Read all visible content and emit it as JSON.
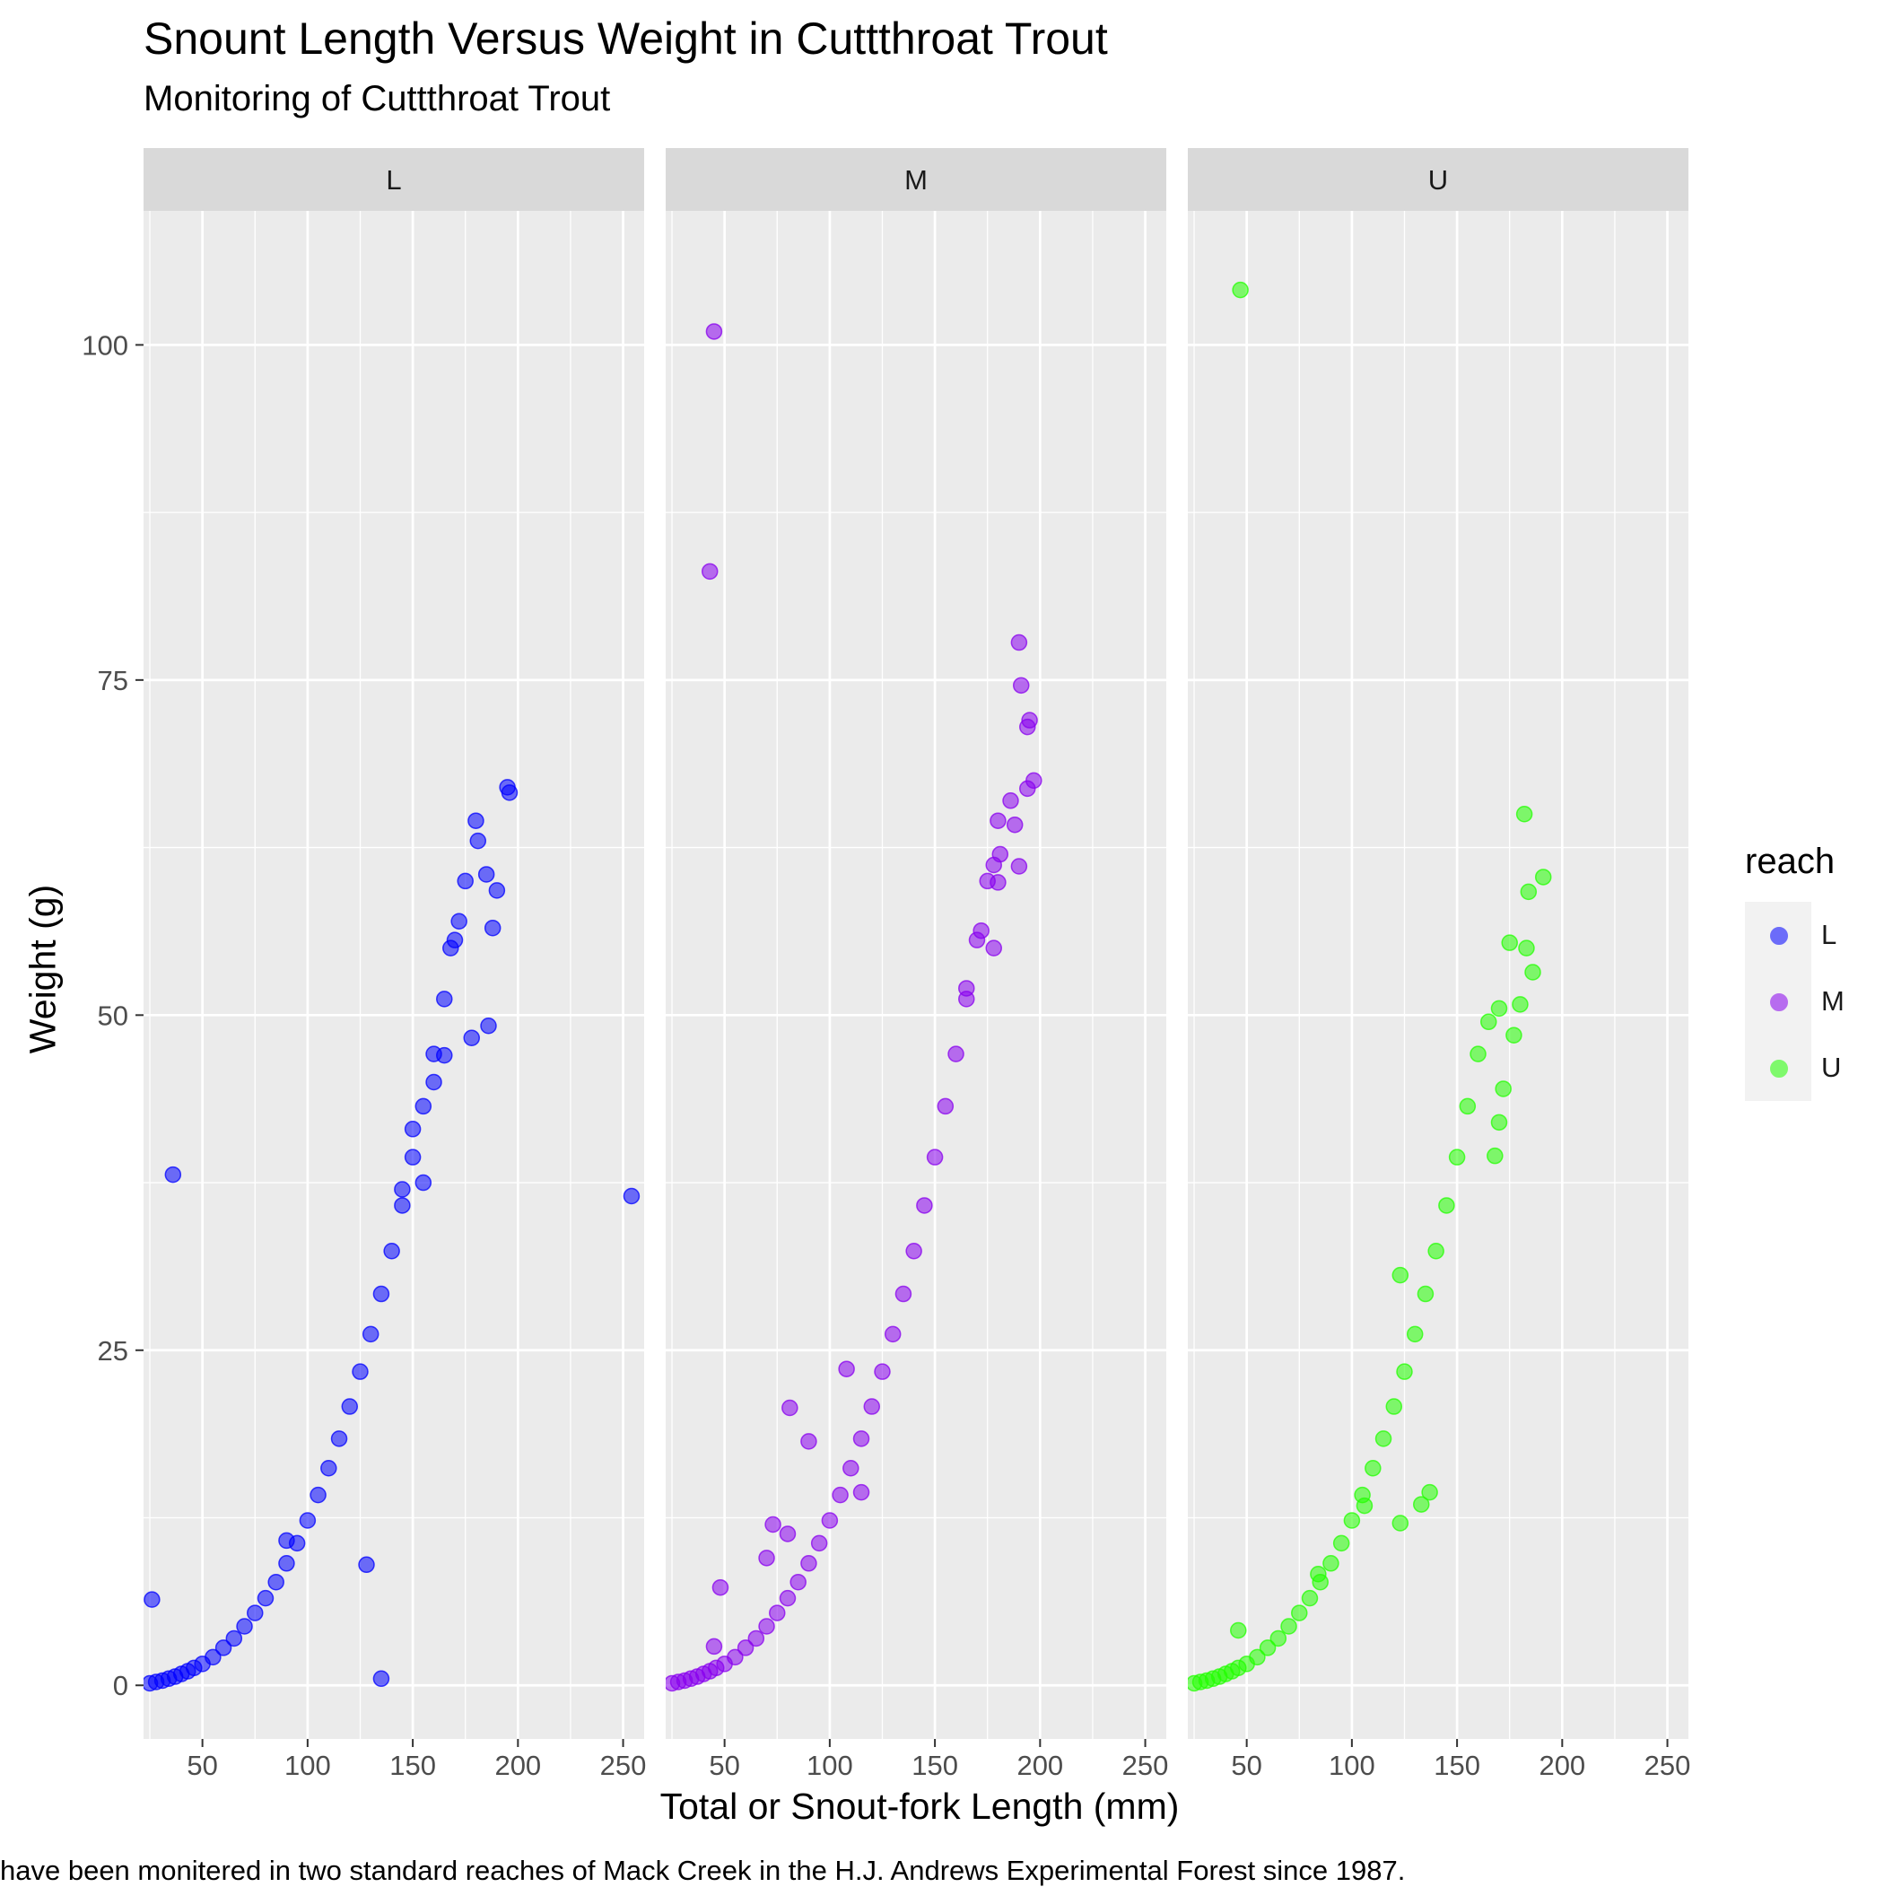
{
  "chart_data": {
    "type": "scatter",
    "title": "Snount Length Versus Weight in Cuttthroat Trout",
    "subtitle": "Monitoring of Cuttthroat Trout",
    "xlabel": "Total or Snout-fork Length (mm)",
    "ylabel": "Weight (g)",
    "caption": "have been monitered in two standard reaches of Mack Creek in the H.J. Andrews Experimental Forest since 1987.",
    "xlim": [
      22,
      260
    ],
    "ylim": [
      -4,
      110
    ],
    "x_ticks": [
      50,
      100,
      150,
      200,
      250
    ],
    "x_tick_labels": [
      "50",
      "100",
      "150",
      "200",
      "250"
    ],
    "y_ticks": [
      0,
      25,
      50,
      75,
      100
    ],
    "y_tick_labels": [
      "0",
      "25",
      "50",
      "75",
      "100"
    ],
    "grid": true,
    "legend": {
      "title": "reach",
      "position": "right"
    },
    "facets": [
      "L",
      "M",
      "U"
    ],
    "series": [
      {
        "name": "L",
        "facet": "L",
        "color": "#0000ff",
        "points": [
          [
            25,
            0.15
          ],
          [
            28,
            0.25
          ],
          [
            31,
            0.35
          ],
          [
            34,
            0.5
          ],
          [
            37,
            0.65
          ],
          [
            40,
            0.85
          ],
          [
            43,
            1.05
          ],
          [
            46,
            1.3
          ],
          [
            50,
            1.6
          ],
          [
            55,
            2.1
          ],
          [
            60,
            2.8
          ],
          [
            65,
            3.5
          ],
          [
            70,
            4.4
          ],
          [
            75,
            5.4
          ],
          [
            80,
            6.5
          ],
          [
            85,
            7.7
          ],
          [
            90,
            9.1
          ],
          [
            95,
            10.6
          ],
          [
            100,
            12.3
          ],
          [
            105,
            14.2
          ],
          [
            110,
            16.2
          ],
          [
            115,
            18.4
          ],
          [
            120,
            20.8
          ],
          [
            125,
            23.4
          ],
          [
            130,
            26.2
          ],
          [
            135,
            29.2
          ],
          [
            140,
            32.4
          ],
          [
            145,
            35.8
          ],
          [
            150,
            39.4
          ],
          [
            155,
            43.2
          ],
          [
            160,
            47.1
          ],
          [
            165,
            51.2
          ],
          [
            170,
            55.6
          ],
          [
            175,
            60.0
          ],
          [
            180,
            64.5
          ],
          [
            185,
            60.5
          ],
          [
            190,
            59.3
          ],
          [
            195,
            67.0
          ],
          [
            196,
            66.6
          ],
          [
            181,
            63.0
          ],
          [
            172,
            57.0
          ],
          [
            168,
            55.0
          ],
          [
            186,
            49.2
          ],
          [
            188,
            56.5
          ],
          [
            178,
            48.3
          ],
          [
            165,
            47.0
          ],
          [
            160,
            45.0
          ],
          [
            150,
            41.5
          ],
          [
            145,
            37.0
          ],
          [
            155,
            37.5
          ],
          [
            26,
            6.4
          ],
          [
            36,
            38.1
          ],
          [
            254,
            36.5
          ],
          [
            128,
            9.0
          ],
          [
            135,
            0.5
          ],
          [
            90,
            10.8
          ]
        ]
      },
      {
        "name": "M",
        "facet": "M",
        "color": "#8800ee",
        "points": [
          [
            25,
            0.15
          ],
          [
            28,
            0.25
          ],
          [
            31,
            0.35
          ],
          [
            34,
            0.5
          ],
          [
            37,
            0.65
          ],
          [
            40,
            0.85
          ],
          [
            43,
            1.05
          ],
          [
            46,
            1.3
          ],
          [
            50,
            1.6
          ],
          [
            55,
            2.1
          ],
          [
            60,
            2.8
          ],
          [
            65,
            3.5
          ],
          [
            70,
            4.4
          ],
          [
            75,
            5.4
          ],
          [
            80,
            6.5
          ],
          [
            85,
            7.7
          ],
          [
            90,
            9.1
          ],
          [
            95,
            10.6
          ],
          [
            100,
            12.3
          ],
          [
            105,
            14.2
          ],
          [
            110,
            16.2
          ],
          [
            115,
            18.4
          ],
          [
            120,
            20.8
          ],
          [
            125,
            23.4
          ],
          [
            130,
            26.2
          ],
          [
            135,
            29.2
          ],
          [
            140,
            32.4
          ],
          [
            145,
            35.8
          ],
          [
            150,
            39.4
          ],
          [
            155,
            43.2
          ],
          [
            160,
            47.1
          ],
          [
            165,
            51.2
          ],
          [
            170,
            55.6
          ],
          [
            175,
            60.0
          ],
          [
            180,
            64.5
          ],
          [
            190,
            77.8
          ],
          [
            191,
            74.6
          ],
          [
            195,
            72.0
          ],
          [
            194,
            71.5
          ],
          [
            197,
            67.5
          ],
          [
            194,
            66.9
          ],
          [
            186,
            66.0
          ],
          [
            188,
            64.2
          ],
          [
            181,
            62.0
          ],
          [
            190,
            61.1
          ],
          [
            178,
            61.2
          ],
          [
            180,
            59.9
          ],
          [
            172,
            56.3
          ],
          [
            178,
            55.0
          ],
          [
            165,
            52.0
          ],
          [
            45,
            101.0
          ],
          [
            43,
            83.1
          ],
          [
            81,
            20.7
          ],
          [
            90,
            18.2
          ],
          [
            108,
            23.6
          ],
          [
            73,
            12.0
          ],
          [
            80,
            11.3
          ],
          [
            70,
            9.5
          ],
          [
            48,
            7.3
          ],
          [
            45,
            2.9
          ],
          [
            115,
            14.4
          ]
        ]
      },
      {
        "name": "U",
        "facet": "U",
        "color": "#22ff00",
        "points": [
          [
            25,
            0.15
          ],
          [
            28,
            0.25
          ],
          [
            31,
            0.35
          ],
          [
            34,
            0.5
          ],
          [
            37,
            0.65
          ],
          [
            40,
            0.85
          ],
          [
            43,
            1.05
          ],
          [
            46,
            1.3
          ],
          [
            50,
            1.6
          ],
          [
            55,
            2.1
          ],
          [
            60,
            2.8
          ],
          [
            65,
            3.5
          ],
          [
            70,
            4.4
          ],
          [
            75,
            5.4
          ],
          [
            80,
            6.5
          ],
          [
            85,
            7.7
          ],
          [
            90,
            9.1
          ],
          [
            95,
            10.6
          ],
          [
            100,
            12.3
          ],
          [
            105,
            14.2
          ],
          [
            110,
            16.2
          ],
          [
            115,
            18.4
          ],
          [
            120,
            20.8
          ],
          [
            125,
            23.4
          ],
          [
            130,
            26.2
          ],
          [
            135,
            29.2
          ],
          [
            140,
            32.4
          ],
          [
            145,
            35.8
          ],
          [
            150,
            39.4
          ],
          [
            155,
            43.2
          ],
          [
            160,
            47.1
          ],
          [
            165,
            49.5
          ],
          [
            170,
            50.5
          ],
          [
            175,
            55.4
          ],
          [
            182,
            65.0
          ],
          [
            184,
            59.2
          ],
          [
            191,
            60.3
          ],
          [
            183,
            55.0
          ],
          [
            186,
            53.2
          ],
          [
            180,
            50.8
          ],
          [
            177,
            48.5
          ],
          [
            172,
            44.5
          ],
          [
            170,
            42.0
          ],
          [
            168,
            39.5
          ],
          [
            47,
            104.1
          ],
          [
            46,
            4.1
          ],
          [
            123,
            30.6
          ],
          [
            137,
            14.4
          ],
          [
            133,
            13.5
          ],
          [
            123,
            12.1
          ],
          [
            106,
            13.4
          ],
          [
            84,
            8.3
          ]
        ]
      }
    ]
  }
}
